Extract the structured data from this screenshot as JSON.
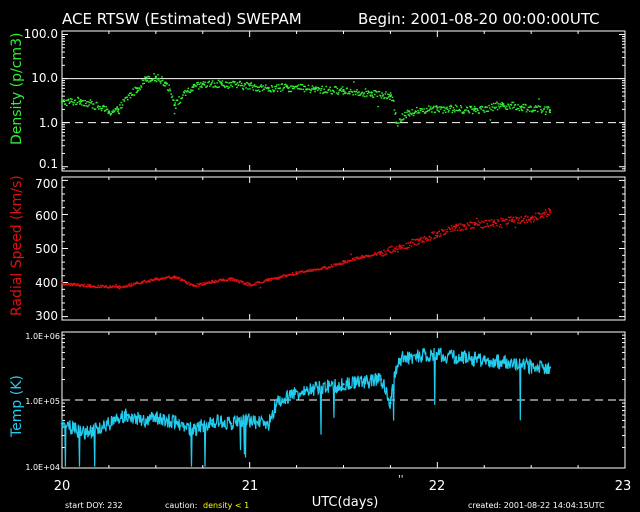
{
  "header": {
    "title": "ACE RTSW (Estimated) SWEPAM",
    "begin": "Begin: 2001-08-20 00:00:00UTC"
  },
  "footer": {
    "start_doy": "start DOY: 232",
    "caution_prefix": "caution:",
    "caution_text": "density < 1",
    "created": "created: 2001-08-22 14:04:15UTC",
    "xlabel": "UTC(days)",
    "xticks": [
      "20",
      "21",
      "22",
      "23"
    ],
    "midnight_marks": "''"
  },
  "colors": {
    "density": "#33ee33",
    "speed": "#dd1111",
    "temp": "#22ccee",
    "caution": "#ffff00",
    "axes": "#ffffff"
  },
  "chart_data": [
    {
      "type": "scatter",
      "ylabel": "Density (p/cm3)",
      "yscale": "log",
      "ylim": [
        0.08,
        120
      ],
      "yticks": [
        "100.0",
        "10.0",
        "1.0",
        "0.1"
      ],
      "reference_lines": [
        {
          "y": 10,
          "style": "solid"
        },
        {
          "y": 1,
          "style": "dashed"
        }
      ],
      "xlim": [
        20,
        23
      ],
      "x": [
        20.0,
        20.1,
        20.25,
        20.3,
        20.4,
        20.45,
        20.5,
        20.55,
        20.6,
        20.7,
        20.75,
        20.85,
        21.0,
        21.1,
        21.2,
        21.35,
        21.5,
        21.65,
        21.75,
        21.78,
        21.85,
        22.0,
        22.2,
        22.35,
        22.45,
        22.6
      ],
      "y": [
        3.0,
        3.2,
        1.8,
        2.0,
        6.0,
        10.5,
        11.0,
        8.0,
        2.5,
        6.5,
        7.5,
        7.8,
        7.0,
        6.0,
        6.5,
        5.8,
        5.5,
        4.8,
        4.0,
        1.0,
        1.8,
        2.2,
        2.0,
        2.6,
        2.3,
        1.9
      ]
    },
    {
      "type": "scatter",
      "ylabel": "Radial Speed (km/s)",
      "ylim": [
        290,
        710
      ],
      "yticks": [
        "700",
        "600",
        "500",
        "400",
        "300"
      ],
      "xlim": [
        20,
        23
      ],
      "x": [
        20.0,
        20.15,
        20.3,
        20.4,
        20.5,
        20.6,
        20.7,
        20.8,
        20.9,
        21.0,
        21.1,
        21.25,
        21.4,
        21.5,
        21.6,
        21.7,
        21.8,
        21.9,
        22.0,
        22.1,
        22.2,
        22.3,
        22.4,
        22.5,
        22.6
      ],
      "y": [
        398,
        392,
        388,
        400,
        412,
        418,
        392,
        405,
        412,
        395,
        410,
        430,
        445,
        462,
        478,
        490,
        505,
        525,
        545,
        565,
        570,
        578,
        585,
        590,
        612
      ]
    },
    {
      "type": "line",
      "ylabel": "Temp (K)",
      "yscale": "log",
      "ylim": [
        10000,
        1000000
      ],
      "yticks": [
        "1.0E+06",
        "1.0E+05",
        "1.0E+04"
      ],
      "reference_lines": [
        {
          "y": 100000,
          "style": "dashed"
        }
      ],
      "xlim": [
        20,
        23
      ],
      "x": [
        20.0,
        20.1,
        20.2,
        20.35,
        20.45,
        20.5,
        20.6,
        20.7,
        20.8,
        20.9,
        21.0,
        21.1,
        21.15,
        21.3,
        21.5,
        21.7,
        21.75,
        21.8,
        21.9,
        22.0,
        22.1,
        22.3,
        22.45,
        22.6
      ],
      "y": [
        45000,
        33000,
        38000,
        60000,
        50000,
        55000,
        48000,
        35000,
        50000,
        45000,
        50000,
        42000,
        95000,
        140000,
        170000,
        200000,
        90000,
        400000,
        450000,
        480000,
        420000,
        380000,
        320000,
        300000
      ]
    }
  ]
}
